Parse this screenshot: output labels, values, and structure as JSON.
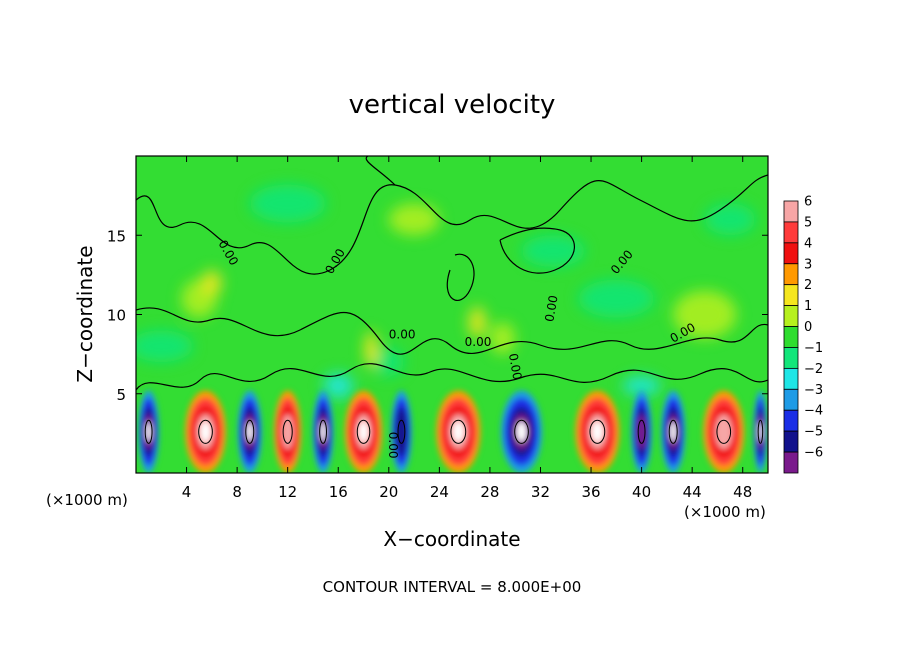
{
  "chart_data": {
    "type": "heatmap",
    "title": "vertical velocity",
    "xlabel": "X−coordinate",
    "ylabel": "Z−coordinate",
    "x_unit": "(×1000 m)",
    "x_unit_right": "(×1000 m)",
    "footnote": "CONTOUR INTERVAL = 8.000E+00",
    "xlim": [
      0,
      50
    ],
    "ylim": [
      0,
      20
    ],
    "x_ticks": [
      4,
      8,
      12,
      16,
      20,
      24,
      28,
      32,
      36,
      40,
      44,
      48
    ],
    "x_tick_labels": [
      "4",
      "8",
      "12",
      "16",
      "20",
      "24",
      "28",
      "32",
      "36",
      "40",
      "44",
      "48"
    ],
    "y_ticks": [
      5,
      10,
      15
    ],
    "y_tick_labels": [
      "5",
      "10",
      "15"
    ],
    "colorbar": {
      "levels": [
        6,
        5,
        4,
        3,
        2,
        1,
        0,
        -1,
        -2,
        -3,
        -4,
        -5,
        -6
      ],
      "labels": [
        "6",
        "5",
        "4",
        "3",
        "2",
        "1",
        "0",
        "−1",
        "−2",
        "−3",
        "−4",
        "−5",
        "−6"
      ],
      "colors": [
        "#f7a6a6",
        "#ff3b3b",
        "#f01010",
        "#ff9900",
        "#f5e61e",
        "#b6f01e",
        "#2fdd2f",
        "#12e67a",
        "#1ee6e6",
        "#1e9be6",
        "#1a2ee6",
        "#12128c",
        "#7a1a8c"
      ]
    },
    "background_color": "#33dd33",
    "near_surface_cells": [
      {
        "x": 1.0,
        "w": 1.2,
        "value": -6
      },
      {
        "x": 5.5,
        "w": 2.4,
        "value": 6
      },
      {
        "x": 9.0,
        "w": 1.4,
        "value": -6
      },
      {
        "x": 12.0,
        "w": 1.6,
        "value": 5
      },
      {
        "x": 14.8,
        "w": 1.2,
        "value": -6
      },
      {
        "x": 18.0,
        "w": 2.2,
        "value": 6
      },
      {
        "x": 21.0,
        "w": 1.2,
        "value": -4
      },
      {
        "x": 25.5,
        "w": 2.6,
        "value": 6
      },
      {
        "x": 30.5,
        "w": 2.4,
        "value": -6
      },
      {
        "x": 36.5,
        "w": 2.6,
        "value": 6
      },
      {
        "x": 40.0,
        "w": 1.2,
        "value": -5
      },
      {
        "x": 42.5,
        "w": 1.4,
        "value": -6
      },
      {
        "x": 46.5,
        "w": 2.4,
        "value": 5
      },
      {
        "x": 49.4,
        "w": 0.8,
        "value": -6
      }
    ],
    "contour_labels": [
      "0.00",
      "0.00",
      "0.00",
      "0.00",
      "0.00",
      "0.00",
      "0.00",
      "0.00",
      "0.00"
    ]
  }
}
